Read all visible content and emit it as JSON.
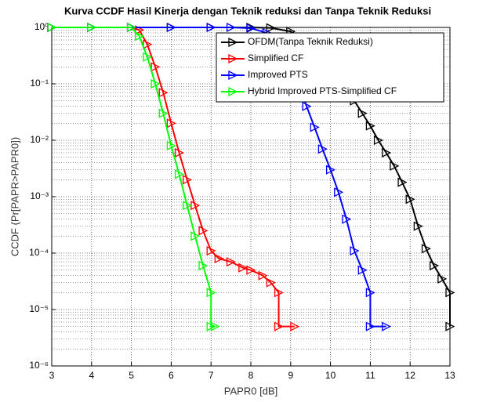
{
  "chart_data": {
    "type": "line",
    "title": "Kurva CCDF Hasil Kinerja dengan Teknik reduksi dan Tanpa Teknik Reduksi",
    "xlabel": "PAPR0 [dB]",
    "ylabel": "CCDF (Pr[PAPR>PAPR0])",
    "xlim": [
      3,
      13
    ],
    "xticks": [
      3,
      4,
      5,
      6,
      7,
      8,
      9,
      10,
      11,
      12,
      13
    ],
    "ylim": [
      1e-06,
      1
    ],
    "ylog": true,
    "yticks": [
      {
        "value": 1e-06,
        "label": "10⁻⁶"
      },
      {
        "value": 1e-05,
        "label": "10⁻⁵"
      },
      {
        "value": 0.0001,
        "label": "10⁻⁴"
      },
      {
        "value": 0.001,
        "label": "10⁻³"
      },
      {
        "value": 0.01,
        "label": "10⁻²"
      },
      {
        "value": 0.1,
        "label": "10⁻¹"
      },
      {
        "value": 1,
        "label": "10⁰"
      }
    ],
    "grid": true,
    "minor_grid": true,
    "legend": "upper right",
    "series": [
      {
        "name": "OFDM(Tanpa Teknik Reduksi)",
        "color": "#000000",
        "x": [
          3,
          4,
          5,
          6,
          7,
          8,
          8.5,
          9,
          9.5,
          9.8,
          10,
          10.2,
          10.4,
          10.6,
          10.8,
          11,
          11.2,
          11.4,
          11.6,
          11.8,
          12,
          12.2,
          12.4,
          12.6,
          12.8,
          13,
          13
        ],
        "values": [
          1,
          1,
          1,
          1,
          1,
          1,
          0.98,
          0.85,
          0.5,
          0.3,
          0.2,
          0.14,
          0.08,
          0.05,
          0.03,
          0.018,
          0.01,
          0.006,
          0.0035,
          0.0018,
          0.0009,
          0.0003,
          0.00012,
          6e-05,
          3.5e-05,
          2e-05,
          5e-06
        ]
      },
      {
        "name": "Simplified CF",
        "color": "#ff0000",
        "x": [
          3,
          4,
          5,
          5.2,
          5.4,
          5.6,
          5.8,
          6,
          6.2,
          6.4,
          6.6,
          6.8,
          7,
          7.2,
          7.5,
          7.8,
          8,
          8.3,
          8.5,
          8.7,
          8.7,
          9.1
        ],
        "values": [
          1,
          1,
          1,
          0.9,
          0.5,
          0.2,
          0.07,
          0.02,
          0.006,
          0.002,
          0.0007,
          0.00025,
          0.00011,
          8e-05,
          7e-05,
          5.5e-05,
          5e-05,
          4e-05,
          3e-05,
          2e-05,
          5e-06,
          5e-06
        ]
      },
      {
        "name": "Improved PTS",
        "color": "#0000ff",
        "x": [
          3,
          4,
          5,
          6,
          7,
          7.5,
          8,
          8.4,
          8.7,
          9,
          9.2,
          9.4,
          9.6,
          9.8,
          10,
          10.2,
          10.4,
          10.6,
          10.8,
          11,
          11,
          11.4
        ],
        "values": [
          1,
          1,
          1,
          1,
          1,
          1,
          0.97,
          0.8,
          0.5,
          0.25,
          0.1,
          0.04,
          0.017,
          0.007,
          0.003,
          0.0012,
          0.0004,
          0.00011,
          5e-05,
          2e-05,
          5e-06,
          5e-06
        ]
      },
      {
        "name": "Hybrid Improved PTS-Simplified CF",
        "color": "#00ff00",
        "x": [
          3,
          4,
          5,
          5.2,
          5.4,
          5.6,
          5.8,
          6,
          6.2,
          6.4,
          6.6,
          6.8,
          7,
          7,
          7.1
        ],
        "values": [
          1,
          1,
          1,
          0.7,
          0.3,
          0.1,
          0.03,
          0.008,
          0.0025,
          0.0007,
          0.0002,
          6e-05,
          2e-05,
          5e-06,
          5e-06
        ]
      }
    ]
  }
}
